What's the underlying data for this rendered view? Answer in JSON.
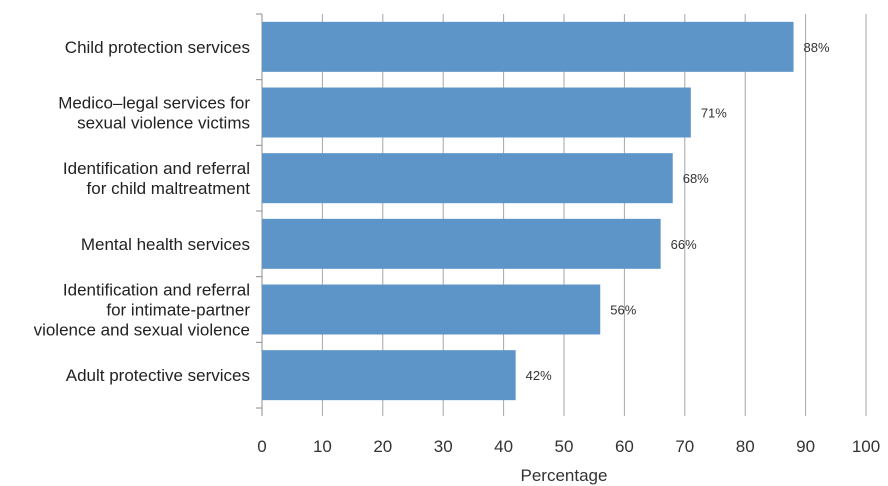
{
  "chart_data": {
    "type": "bar",
    "orientation": "horizontal",
    "categories": [
      [
        "Child protection services"
      ],
      [
        "Medico–legal services for",
        "sexual violence victims"
      ],
      [
        "Identification and referral",
        "for child maltreatment"
      ],
      [
        "Mental health services"
      ],
      [
        "Identification and referral",
        "for intimate-partner",
        "violence and sexual violence"
      ],
      [
        "Adult protective services"
      ]
    ],
    "values": [
      88,
      71,
      68,
      66,
      56,
      42
    ],
    "data_labels": [
      "88%",
      "71%",
      "68%",
      "66%",
      "56%",
      "42%"
    ],
    "xlabel": "Percentage",
    "xlim": [
      0,
      100
    ],
    "xticks": [
      0,
      10,
      20,
      30,
      40,
      50,
      60,
      70,
      80,
      90,
      100
    ],
    "grid": "vertical",
    "colors": {
      "bar": "#5e95c9",
      "grid": "#a6a6a6",
      "axis": "#8c8c8c",
      "text": "#222222"
    }
  }
}
